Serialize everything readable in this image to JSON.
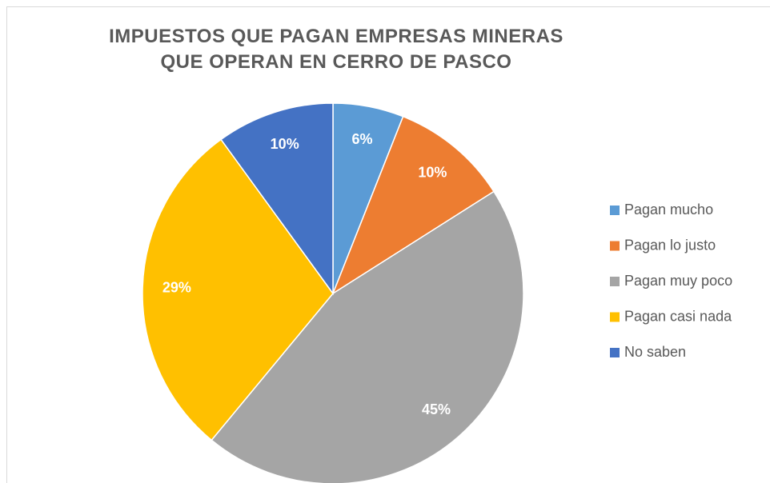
{
  "chart_data": {
    "type": "pie",
    "title": "IMPUESTOS QUE PAGAN EMPRESAS MINERAS QUE OPERAN EN CERRO DE PASCO",
    "categories": [
      "Pagan mucho",
      "Pagan lo justo",
      "Pagan muy poco",
      "Pagan casi nada",
      "No saben"
    ],
    "values": [
      6,
      10,
      45,
      29,
      10
    ],
    "value_labels": [
      "6%",
      "10%",
      "45%",
      "29%",
      "10%"
    ],
    "colors": [
      "#5b9bd5",
      "#ed7d31",
      "#a5a5a5",
      "#ffc000",
      "#4472c4"
    ],
    "legend": "right"
  }
}
